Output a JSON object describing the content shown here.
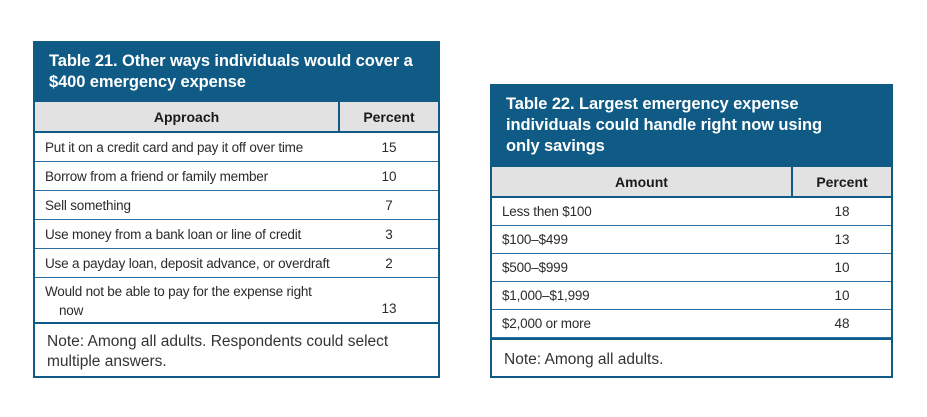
{
  "tables": [
    {
      "id": "table-21",
      "title": "Table 21. Other ways individuals would cover a $400 emergency expense",
      "columns": [
        "Approach",
        "Percent"
      ],
      "rows": [
        {
          "label": "Put it on a credit card and pay it off over time",
          "percent": "15"
        },
        {
          "label": "Borrow from a friend or family member",
          "percent": "10"
        },
        {
          "label": "Sell something",
          "percent": "7"
        },
        {
          "label": "Use money from a bank loan or line of credit",
          "percent": "3"
        },
        {
          "label": "Use a payday loan, deposit advance, or overdraft",
          "percent": "2"
        },
        {
          "label": "Would not be able to pay for the expense right now",
          "percent": "13"
        }
      ],
      "note": "Note: Among all adults. Respondents could select multiple answers."
    },
    {
      "id": "table-22",
      "title": "Table 22. Largest emergency expense individuals could handle right now using only savings",
      "columns": [
        "Amount",
        "Percent"
      ],
      "rows": [
        {
          "label": "Less then $100",
          "percent": "18"
        },
        {
          "label": "$100–$499",
          "percent": "13"
        },
        {
          "label": "$500–$999",
          "percent": "10"
        },
        {
          "label": "$1,000–$1,999",
          "percent": "10"
        },
        {
          "label": "$2,000 or more",
          "percent": "48"
        }
      ],
      "note": "Note: Among all adults."
    }
  ],
  "colors": {
    "header_bg": "#0F5B86",
    "table_border": "#0F5B86",
    "row_divider": "#2F6EA5",
    "column_header_bg": "#E2E2E2",
    "body_text": "#2B2B2B",
    "title_text": "#FFFFFF"
  }
}
